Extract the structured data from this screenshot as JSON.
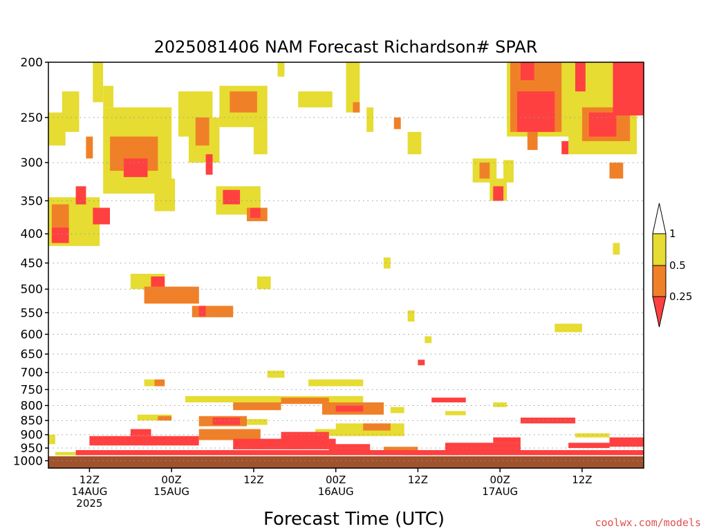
{
  "chart_data": {
    "type": "heatmap",
    "title": "2025081406 NAM Forecast Richardson# SPAR",
    "xlabel": "Forecast Time (UTC)",
    "ylabel": "",
    "credit": "coolwx.com/models",
    "y_scale": "log",
    "y_inverted": true,
    "ylim": [
      1030,
      200
    ],
    "xlim": [
      6,
      93
    ],
    "y_ticks": [
      200,
      250,
      300,
      350,
      400,
      450,
      500,
      550,
      600,
      650,
      700,
      750,
      800,
      850,
      900,
      950,
      1000
    ],
    "y_tick_labels": [
      "200",
      "250",
      "300",
      "350",
      "400",
      "450",
      "500",
      "550",
      "600",
      "650",
      "700",
      "750",
      "800",
      "850",
      "900",
      "950",
      "1000"
    ],
    "x_ticks": [
      {
        "hour": 12,
        "lines": [
          "12Z",
          "14AUG",
          "2025"
        ]
      },
      {
        "hour": 24,
        "lines": [
          "00Z",
          "15AUG"
        ]
      },
      {
        "hour": 36,
        "lines": [
          "12Z"
        ]
      },
      {
        "hour": 48,
        "lines": [
          "00Z",
          "16AUG"
        ]
      },
      {
        "hour": 60,
        "lines": [
          "12Z"
        ]
      },
      {
        "hour": 72,
        "lines": [
          "00Z",
          "17AUG"
        ]
      },
      {
        "hour": 84,
        "lines": [
          "12Z"
        ]
      }
    ],
    "grid": "dotted horizontal at pressure ticks",
    "surface_color": "#a0522d",
    "legend": {
      "placement": "right",
      "levels": [
        {
          "label": "0.25",
          "color": "#ff4040",
          "range": "<0.25"
        },
        {
          "label": "0.5",
          "color": "#f08028",
          "range": "0.25-0.5"
        },
        {
          "label": "1",
          "color": "#e6dc32",
          "range": "0.5-1"
        },
        {
          "label": "",
          "color": "#ffffff",
          "range": ">1"
        }
      ]
    },
    "colors": {
      "red": "#ff4040",
      "orange": "#f08028",
      "yellow": "#e6dc32"
    },
    "regions": [
      {
        "t0": 6,
        "t1": 8.5,
        "p0": 245,
        "p1": 280,
        "cls": "yellow"
      },
      {
        "t0": 8,
        "t1": 10.5,
        "p0": 225,
        "p1": 265,
        "cls": "yellow"
      },
      {
        "t0": 12.5,
        "t1": 14,
        "p0": 200,
        "p1": 235,
        "cls": "yellow"
      },
      {
        "t0": 14,
        "t1": 15.5,
        "p0": 220,
        "p1": 240,
        "cls": "yellow"
      },
      {
        "t0": 14,
        "t1": 24,
        "p0": 240,
        "p1": 340,
        "cls": "yellow"
      },
      {
        "t0": 15,
        "t1": 22,
        "p0": 270,
        "p1": 310,
        "cls": "orange"
      },
      {
        "t0": 17,
        "t1": 20.5,
        "p0": 295,
        "p1": 318,
        "cls": "red"
      },
      {
        "t0": 11.5,
        "t1": 12.5,
        "p0": 270,
        "p1": 295,
        "cls": "orange"
      },
      {
        "t0": 21.5,
        "t1": 24.5,
        "p0": 320,
        "p1": 365,
        "cls": "yellow"
      },
      {
        "t0": 6,
        "t1": 13.5,
        "p0": 345,
        "p1": 420,
        "cls": "yellow"
      },
      {
        "t0": 6.5,
        "t1": 9,
        "p0": 355,
        "p1": 395,
        "cls": "orange"
      },
      {
        "t0": 6.5,
        "t1": 9,
        "p0": 390,
        "p1": 415,
        "cls": "red"
      },
      {
        "t0": 10,
        "t1": 11.5,
        "p0": 330,
        "p1": 355,
        "cls": "red"
      },
      {
        "t0": 12.5,
        "t1": 15,
        "p0": 360,
        "p1": 385,
        "cls": "red"
      },
      {
        "t0": 25,
        "t1": 30,
        "p0": 225,
        "p1": 270,
        "cls": "yellow"
      },
      {
        "t0": 26.5,
        "t1": 31,
        "p0": 250,
        "p1": 300,
        "cls": "yellow"
      },
      {
        "t0": 27.5,
        "t1": 29.5,
        "p0": 250,
        "p1": 280,
        "cls": "orange"
      },
      {
        "t0": 29,
        "t1": 30,
        "p0": 290,
        "p1": 315,
        "cls": "red"
      },
      {
        "t0": 31,
        "t1": 38,
        "p0": 220,
        "p1": 260,
        "cls": "yellow"
      },
      {
        "t0": 32.5,
        "t1": 36.5,
        "p0": 225,
        "p1": 245,
        "cls": "orange"
      },
      {
        "t0": 30.5,
        "t1": 37,
        "p0": 330,
        "p1": 370,
        "cls": "yellow"
      },
      {
        "t0": 31.5,
        "t1": 34,
        "p0": 335,
        "p1": 355,
        "cls": "red"
      },
      {
        "t0": 35,
        "t1": 38,
        "p0": 360,
        "p1": 380,
        "cls": "orange"
      },
      {
        "t0": 35.5,
        "t1": 37,
        "p0": 360,
        "p1": 375,
        "cls": "red"
      },
      {
        "t0": 36,
        "t1": 38,
        "p0": 260,
        "p1": 290,
        "cls": "yellow"
      },
      {
        "t0": 39.5,
        "t1": 40.5,
        "p0": 200,
        "p1": 212,
        "cls": "yellow"
      },
      {
        "t0": 42.5,
        "t1": 47.5,
        "p0": 225,
        "p1": 240,
        "cls": "yellow"
      },
      {
        "t0": 49.5,
        "t1": 51.5,
        "p0": 200,
        "p1": 245,
        "cls": "yellow"
      },
      {
        "t0": 50.5,
        "t1": 51.5,
        "p0": 235,
        "p1": 245,
        "cls": "orange"
      },
      {
        "t0": 52.5,
        "t1": 53.5,
        "p0": 240,
        "p1": 265,
        "cls": "yellow"
      },
      {
        "t0": 56.5,
        "t1": 57.5,
        "p0": 250,
        "p1": 262,
        "cls": "orange"
      },
      {
        "t0": 58.5,
        "t1": 60.5,
        "p0": 265,
        "p1": 290,
        "cls": "yellow"
      },
      {
        "t0": 18,
        "t1": 23,
        "p0": 470,
        "p1": 500,
        "cls": "yellow"
      },
      {
        "t0": 20,
        "t1": 28,
        "p0": 495,
        "p1": 530,
        "cls": "orange"
      },
      {
        "t0": 21,
        "t1": 23,
        "p0": 475,
        "p1": 495,
        "cls": "red"
      },
      {
        "t0": 27,
        "t1": 33,
        "p0": 535,
        "p1": 560,
        "cls": "orange"
      },
      {
        "t0": 28,
        "t1": 29,
        "p0": 535,
        "p1": 558,
        "cls": "red"
      },
      {
        "t0": 36.5,
        "t1": 38.5,
        "p0": 475,
        "p1": 500,
        "cls": "yellow"
      },
      {
        "t0": 55,
        "t1": 56,
        "p0": 440,
        "p1": 460,
        "cls": "yellow"
      },
      {
        "t0": 58.5,
        "t1": 59.5,
        "p0": 545,
        "p1": 570,
        "cls": "yellow"
      },
      {
        "t0": 61,
        "t1": 62,
        "p0": 605,
        "p1": 622,
        "cls": "yellow"
      },
      {
        "t0": 60,
        "t1": 61,
        "p0": 665,
        "p1": 680,
        "cls": "red"
      },
      {
        "t0": 68,
        "t1": 71.5,
        "p0": 295,
        "p1": 325,
        "cls": "yellow"
      },
      {
        "t0": 69,
        "t1": 70.5,
        "p0": 300,
        "p1": 320,
        "cls": "orange"
      },
      {
        "t0": 70.5,
        "t1": 73,
        "p0": 320,
        "p1": 350,
        "cls": "yellow"
      },
      {
        "t0": 71,
        "t1": 72.5,
        "p0": 330,
        "p1": 350,
        "cls": "red"
      },
      {
        "t0": 72.5,
        "t1": 74,
        "p0": 297,
        "p1": 325,
        "cls": "yellow"
      },
      {
        "t0": 73,
        "t1": 82.5,
        "p0": 200,
        "p1": 270,
        "cls": "yellow"
      },
      {
        "t0": 73.5,
        "t1": 81,
        "p0": 200,
        "p1": 265,
        "cls": "orange"
      },
      {
        "t0": 74.5,
        "t1": 80,
        "p0": 225,
        "p1": 265,
        "cls": "red"
      },
      {
        "t0": 75,
        "t1": 77,
        "p0": 200,
        "p1": 215,
        "cls": "red"
      },
      {
        "t0": 76,
        "t1": 77.5,
        "p0": 265,
        "p1": 285,
        "cls": "orange"
      },
      {
        "t0": 82,
        "t1": 92,
        "p0": 200,
        "p1": 290,
        "cls": "yellow"
      },
      {
        "t0": 83,
        "t1": 84.5,
        "p0": 200,
        "p1": 225,
        "cls": "red"
      },
      {
        "t0": 84,
        "t1": 91,
        "p0": 240,
        "p1": 275,
        "cls": "orange"
      },
      {
        "t0": 85,
        "t1": 89,
        "p0": 245,
        "p1": 270,
        "cls": "red"
      },
      {
        "t0": 88.5,
        "t1": 93,
        "p0": 200,
        "p1": 248,
        "cls": "red"
      },
      {
        "t0": 88,
        "t1": 90,
        "p0": 300,
        "p1": 320,
        "cls": "orange"
      },
      {
        "t0": 81,
        "t1": 82,
        "p0": 275,
        "p1": 290,
        "cls": "red"
      },
      {
        "t0": 88.5,
        "t1": 89.5,
        "p0": 415,
        "p1": 435,
        "cls": "yellow"
      },
      {
        "t0": 80,
        "t1": 84,
        "p0": 575,
        "p1": 595,
        "cls": "yellow"
      },
      {
        "t0": 20,
        "t1": 21.5,
        "p0": 720,
        "p1": 740,
        "cls": "yellow"
      },
      {
        "t0": 21.5,
        "t1": 23,
        "p0": 720,
        "p1": 740,
        "cls": "orange"
      },
      {
        "t0": 38,
        "t1": 40.5,
        "p0": 695,
        "p1": 715,
        "cls": "yellow"
      },
      {
        "t0": 44,
        "t1": 52,
        "p0": 720,
        "p1": 740,
        "cls": "yellow"
      },
      {
        "t0": 26,
        "t1": 52,
        "p0": 770,
        "p1": 790,
        "cls": "yellow"
      },
      {
        "t0": 33,
        "t1": 40,
        "p0": 790,
        "p1": 815,
        "cls": "orange"
      },
      {
        "t0": 40,
        "t1": 47,
        "p0": 775,
        "p1": 795,
        "cls": "orange"
      },
      {
        "t0": 46,
        "t1": 55,
        "p0": 790,
        "p1": 830,
        "cls": "orange"
      },
      {
        "t0": 48,
        "t1": 52,
        "p0": 800,
        "p1": 820,
        "cls": "red"
      },
      {
        "t0": 56,
        "t1": 58,
        "p0": 805,
        "p1": 825,
        "cls": "yellow"
      },
      {
        "t0": 62,
        "t1": 67,
        "p0": 775,
        "p1": 790,
        "cls": "red"
      },
      {
        "t0": 71,
        "t1": 73,
        "p0": 790,
        "p1": 805,
        "cls": "yellow"
      },
      {
        "t0": 64,
        "t1": 67,
        "p0": 818,
        "p1": 832,
        "cls": "yellow"
      },
      {
        "t0": 19,
        "t1": 24,
        "p0": 830,
        "p1": 850,
        "cls": "yellow"
      },
      {
        "t0": 22,
        "t1": 24,
        "p0": 835,
        "p1": 850,
        "cls": "orange"
      },
      {
        "t0": 28,
        "t1": 35,
        "p0": 835,
        "p1": 870,
        "cls": "orange"
      },
      {
        "t0": 30,
        "t1": 34,
        "p0": 840,
        "p1": 865,
        "cls": "red"
      },
      {
        "t0": 35,
        "t1": 38,
        "p0": 845,
        "p1": 865,
        "cls": "yellow"
      },
      {
        "t0": 48,
        "t1": 58,
        "p0": 860,
        "p1": 905,
        "cls": "yellow"
      },
      {
        "t0": 52,
        "t1": 56,
        "p0": 860,
        "p1": 885,
        "cls": "orange"
      },
      {
        "t0": 75,
        "t1": 83,
        "p0": 840,
        "p1": 860,
        "cls": "red"
      },
      {
        "t0": 78,
        "t1": 80,
        "p0": 840,
        "p1": 850,
        "cls": "yellow"
      },
      {
        "t0": 83,
        "t1": 88,
        "p0": 895,
        "p1": 910,
        "cls": "yellow"
      },
      {
        "t0": 12,
        "t1": 28,
        "p0": 905,
        "p1": 940,
        "cls": "red"
      },
      {
        "t0": 18,
        "t1": 21,
        "p0": 880,
        "p1": 905,
        "cls": "red"
      },
      {
        "t0": 28,
        "t1": 37,
        "p0": 880,
        "p1": 920,
        "cls": "orange"
      },
      {
        "t0": 33,
        "t1": 48,
        "p0": 915,
        "p1": 955,
        "cls": "red"
      },
      {
        "t0": 40,
        "t1": 47,
        "p0": 890,
        "p1": 920,
        "cls": "red"
      },
      {
        "t0": 45,
        "t1": 52,
        "p0": 880,
        "p1": 905,
        "cls": "yellow"
      },
      {
        "t0": 47,
        "t1": 53,
        "p0": 935,
        "p1": 960,
        "cls": "red"
      },
      {
        "t0": 55,
        "t1": 60,
        "p0": 945,
        "p1": 960,
        "cls": "orange"
      },
      {
        "t0": 64,
        "t1": 75,
        "p0": 930,
        "p1": 965,
        "cls": "red"
      },
      {
        "t0": 71,
        "t1": 75,
        "p0": 910,
        "p1": 930,
        "cls": "red"
      },
      {
        "t0": 82,
        "t1": 88,
        "p0": 930,
        "p1": 950,
        "cls": "red"
      },
      {
        "t0": 88,
        "t1": 93,
        "p0": 910,
        "p1": 945,
        "cls": "red"
      },
      {
        "t0": 6,
        "t1": 7,
        "p0": 900,
        "p1": 935,
        "cls": "yellow"
      },
      {
        "t0": 10,
        "t1": 93,
        "p0": 958,
        "p1": 978,
        "cls": "red"
      },
      {
        "t0": 7,
        "t1": 12,
        "p0": 965,
        "p1": 978,
        "cls": "yellow"
      },
      {
        "t0": 58,
        "t1": 66,
        "p0": 965,
        "p1": 978,
        "cls": "orange"
      }
    ]
  }
}
